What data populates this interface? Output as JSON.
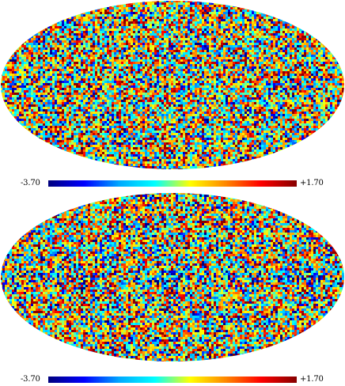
{
  "maps": [
    {
      "id": "top",
      "projection": "mollweide",
      "colorbar": {
        "min_label": "-3.70",
        "max_label": "+1.70",
        "min": -3.7,
        "max": 1.7
      },
      "feature": "uniform-noise"
    },
    {
      "id": "bottom",
      "projection": "mollweide",
      "colorbar": {
        "min_label": "-3.70",
        "max_label": "+1.70",
        "min": -3.7,
        "max": 1.7
      },
      "feature": "noise-with-galactic-plane-band"
    }
  ],
  "colormap": [
    "#000080",
    "#0000ff",
    "#00aaff",
    "#00ffff",
    "#ffff00",
    "#ff8800",
    "#ff0000",
    "#880000"
  ]
}
